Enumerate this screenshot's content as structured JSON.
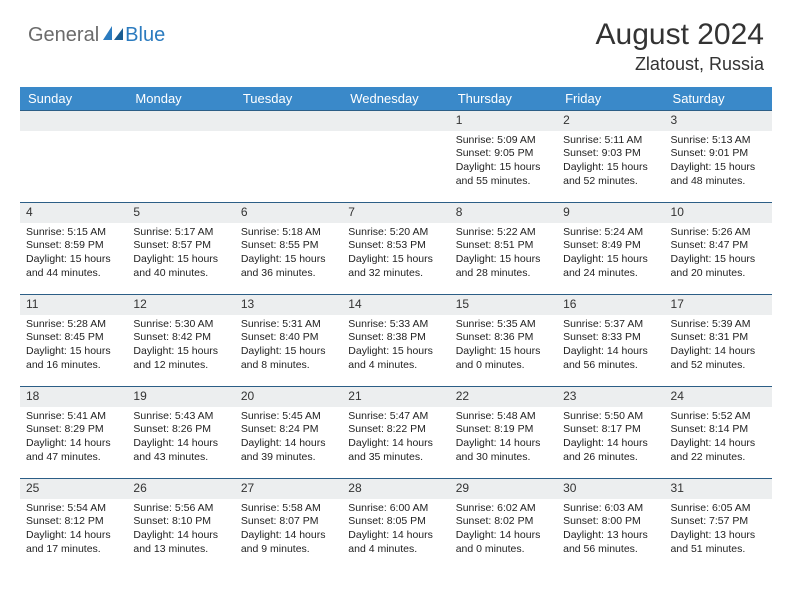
{
  "logo": {
    "word1": "General",
    "word2": "Blue"
  },
  "title": "August 2024",
  "location": "Zlatoust, Russia",
  "colors": {
    "header_bg": "#3a89c9",
    "header_text": "#ffffff",
    "row_border": "#2c5e86",
    "daynum_bg": "#eceeef",
    "logo_gray": "#6b6b6b",
    "logo_blue": "#2b7bbf",
    "body_text": "#222222",
    "page_bg": "#ffffff"
  },
  "fonts": {
    "title_size": 30,
    "location_size": 18,
    "header_size": 13,
    "cell_size": 10.5
  },
  "weekdays": [
    "Sunday",
    "Monday",
    "Tuesday",
    "Wednesday",
    "Thursday",
    "Friday",
    "Saturday"
  ],
  "weeks": [
    [
      null,
      null,
      null,
      null,
      {
        "n": "1",
        "sr": "5:09 AM",
        "ss": "9:05 PM",
        "dl": "15 hours and 55 minutes."
      },
      {
        "n": "2",
        "sr": "5:11 AM",
        "ss": "9:03 PM",
        "dl": "15 hours and 52 minutes."
      },
      {
        "n": "3",
        "sr": "5:13 AM",
        "ss": "9:01 PM",
        "dl": "15 hours and 48 minutes."
      }
    ],
    [
      {
        "n": "4",
        "sr": "5:15 AM",
        "ss": "8:59 PM",
        "dl": "15 hours and 44 minutes."
      },
      {
        "n": "5",
        "sr": "5:17 AM",
        "ss": "8:57 PM",
        "dl": "15 hours and 40 minutes."
      },
      {
        "n": "6",
        "sr": "5:18 AM",
        "ss": "8:55 PM",
        "dl": "15 hours and 36 minutes."
      },
      {
        "n": "7",
        "sr": "5:20 AM",
        "ss": "8:53 PM",
        "dl": "15 hours and 32 minutes."
      },
      {
        "n": "8",
        "sr": "5:22 AM",
        "ss": "8:51 PM",
        "dl": "15 hours and 28 minutes."
      },
      {
        "n": "9",
        "sr": "5:24 AM",
        "ss": "8:49 PM",
        "dl": "15 hours and 24 minutes."
      },
      {
        "n": "10",
        "sr": "5:26 AM",
        "ss": "8:47 PM",
        "dl": "15 hours and 20 minutes."
      }
    ],
    [
      {
        "n": "11",
        "sr": "5:28 AM",
        "ss": "8:45 PM",
        "dl": "15 hours and 16 minutes."
      },
      {
        "n": "12",
        "sr": "5:30 AM",
        "ss": "8:42 PM",
        "dl": "15 hours and 12 minutes."
      },
      {
        "n": "13",
        "sr": "5:31 AM",
        "ss": "8:40 PM",
        "dl": "15 hours and 8 minutes."
      },
      {
        "n": "14",
        "sr": "5:33 AM",
        "ss": "8:38 PM",
        "dl": "15 hours and 4 minutes."
      },
      {
        "n": "15",
        "sr": "5:35 AM",
        "ss": "8:36 PM",
        "dl": "15 hours and 0 minutes."
      },
      {
        "n": "16",
        "sr": "5:37 AM",
        "ss": "8:33 PM",
        "dl": "14 hours and 56 minutes."
      },
      {
        "n": "17",
        "sr": "5:39 AM",
        "ss": "8:31 PM",
        "dl": "14 hours and 52 minutes."
      }
    ],
    [
      {
        "n": "18",
        "sr": "5:41 AM",
        "ss": "8:29 PM",
        "dl": "14 hours and 47 minutes."
      },
      {
        "n": "19",
        "sr": "5:43 AM",
        "ss": "8:26 PM",
        "dl": "14 hours and 43 minutes."
      },
      {
        "n": "20",
        "sr": "5:45 AM",
        "ss": "8:24 PM",
        "dl": "14 hours and 39 minutes."
      },
      {
        "n": "21",
        "sr": "5:47 AM",
        "ss": "8:22 PM",
        "dl": "14 hours and 35 minutes."
      },
      {
        "n": "22",
        "sr": "5:48 AM",
        "ss": "8:19 PM",
        "dl": "14 hours and 30 minutes."
      },
      {
        "n": "23",
        "sr": "5:50 AM",
        "ss": "8:17 PM",
        "dl": "14 hours and 26 minutes."
      },
      {
        "n": "24",
        "sr": "5:52 AM",
        "ss": "8:14 PM",
        "dl": "14 hours and 22 minutes."
      }
    ],
    [
      {
        "n": "25",
        "sr": "5:54 AM",
        "ss": "8:12 PM",
        "dl": "14 hours and 17 minutes."
      },
      {
        "n": "26",
        "sr": "5:56 AM",
        "ss": "8:10 PM",
        "dl": "14 hours and 13 minutes."
      },
      {
        "n": "27",
        "sr": "5:58 AM",
        "ss": "8:07 PM",
        "dl": "14 hours and 9 minutes."
      },
      {
        "n": "28",
        "sr": "6:00 AM",
        "ss": "8:05 PM",
        "dl": "14 hours and 4 minutes."
      },
      {
        "n": "29",
        "sr": "6:02 AM",
        "ss": "8:02 PM",
        "dl": "14 hours and 0 minutes."
      },
      {
        "n": "30",
        "sr": "6:03 AM",
        "ss": "8:00 PM",
        "dl": "13 hours and 56 minutes."
      },
      {
        "n": "31",
        "sr": "6:05 AM",
        "ss": "7:57 PM",
        "dl": "13 hours and 51 minutes."
      }
    ]
  ],
  "labels": {
    "sunrise": "Sunrise:",
    "sunset": "Sunset:",
    "daylight": "Daylight:"
  }
}
